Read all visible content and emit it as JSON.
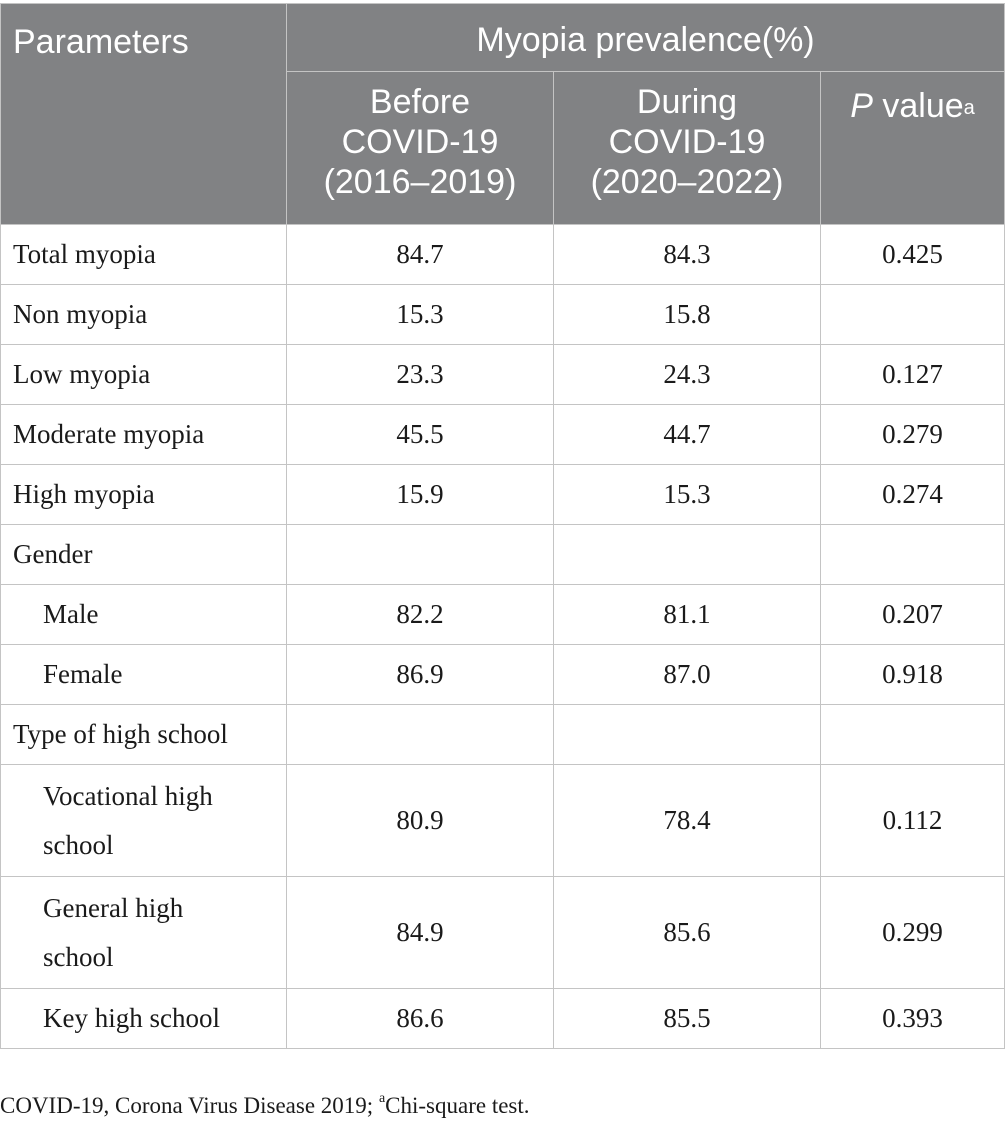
{
  "header": {
    "parameters": "Parameters",
    "group": "Myopia prevalence(%)",
    "before": [
      "Before",
      "COVID-19",
      "(2016–2019)"
    ],
    "during": [
      "During",
      "COVID-19",
      "(2020–2022)"
    ],
    "pvalue_italic": "P",
    "pvalue_text": " value",
    "pvalue_sup": "a"
  },
  "rows": [
    {
      "label": "Total myopia",
      "before": "84.7",
      "during": "84.3",
      "p": "0.425"
    },
    {
      "label": "Non myopia",
      "before": "15.3",
      "during": "15.8",
      "p": ""
    },
    {
      "label": "Low myopia",
      "before": "23.3",
      "during": "24.3",
      "p": "0.127"
    },
    {
      "label": "Moderate myopia",
      "before": "45.5",
      "during": "44.7",
      "p": "0.279"
    },
    {
      "label": "High myopia",
      "before": "15.9",
      "during": "15.3",
      "p": "0.274"
    },
    {
      "label": "Gender",
      "before": "",
      "during": "",
      "p": ""
    },
    {
      "label": "Male",
      "before": "82.2",
      "during": "81.1",
      "p": "0.207"
    },
    {
      "label": "Female",
      "before": "86.9",
      "during": "87.0",
      "p": "0.918"
    },
    {
      "label": "Type of high school",
      "before": "",
      "during": "",
      "p": ""
    },
    {
      "label": "Vocational high school",
      "before": "80.9",
      "during": "78.4",
      "p": "0.112"
    },
    {
      "label": "General high school",
      "before": "84.9",
      "during": "85.6",
      "p": "0.299"
    },
    {
      "label": "Key high school",
      "before": "86.6",
      "during": "85.5",
      "p": "0.393"
    }
  ],
  "footnote": {
    "text": "COVID-19, Corona Virus Disease 2019; ",
    "sup": "a",
    "tail": "Chi-square test."
  }
}
